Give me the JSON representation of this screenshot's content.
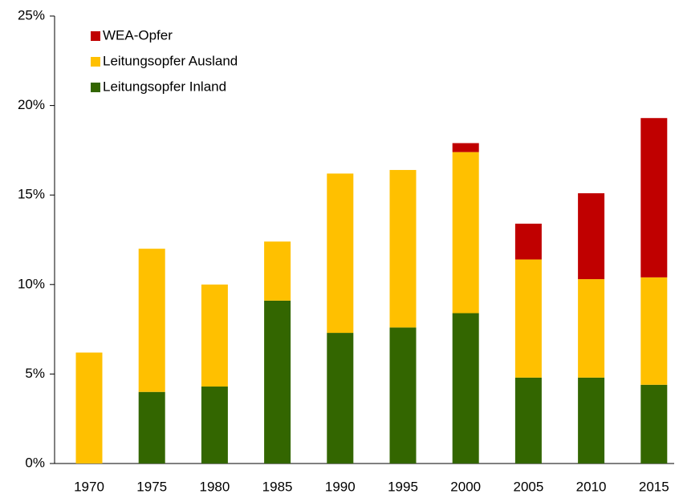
{
  "chart_data": {
    "type": "stacked_bar",
    "categories": [
      "1970",
      "1975",
      "1980",
      "1985",
      "1990",
      "1995",
      "2000",
      "2005",
      "2010",
      "2015"
    ],
    "series": [
      {
        "name": "Leitungsopfer Inland",
        "color": "#336600",
        "values": [
          0,
          4.0,
          4.3,
          9.1,
          7.3,
          7.6,
          8.4,
          4.8,
          4.8,
          4.4
        ]
      },
      {
        "name": "Leitungsopfer Ausland",
        "color": "#ffc000",
        "values": [
          6.2,
          8.0,
          5.7,
          3.3,
          8.9,
          8.8,
          9.0,
          6.6,
          5.5,
          6.0
        ]
      },
      {
        "name": "WEA-Opfer",
        "color": "#c00000",
        "values": [
          0,
          0,
          0,
          0,
          0,
          0,
          0.5,
          2.0,
          4.8,
          8.9
        ]
      }
    ],
    "ylim": [
      0,
      25
    ],
    "yticks": [
      {
        "value": 0,
        "label": "0%"
      },
      {
        "value": 5,
        "label": "5%"
      },
      {
        "value": 10,
        "label": "10%"
      },
      {
        "value": 15,
        "label": "15%"
      },
      {
        "value": 20,
        "label": "20%"
      },
      {
        "value": 25,
        "label": "25%"
      }
    ],
    "legend": "upper-left"
  }
}
